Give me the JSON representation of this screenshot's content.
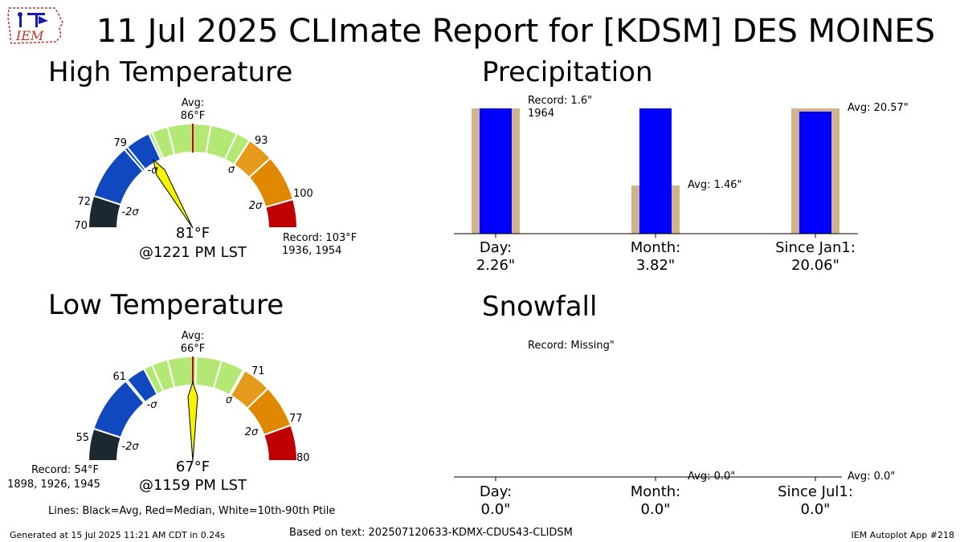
{
  "title": "11 Jul 2025 CLImate Report for [KDSM] DES MOINES",
  "logo_text": "IEM",
  "high": {
    "title": "High Temperature",
    "avg_label": "Avg:",
    "avg_value": "86",
    "unit": "°F",
    "observed": "81",
    "time": "@1221 PM LST",
    "record_label": "Record: 103",
    "record_years": "1936, 1954",
    "value_min": 70,
    "value_max": 103,
    "needle": 81,
    "ticks": [
      {
        "label": "70",
        "value": 70
      },
      {
        "label": "72",
        "value": 72
      },
      {
        "label": "79",
        "value": 79
      },
      {
        "label": "93",
        "value": 93
      },
      {
        "label": "100",
        "value": 100
      }
    ],
    "sigma_labels": {
      "m2": "-2σ",
      "m1": "-σ",
      "p1": "σ",
      "p2": "2σ"
    }
  },
  "low": {
    "title": "Low Temperature",
    "avg_label": "Avg:",
    "avg_value": "66",
    "unit": "°F",
    "observed": "67",
    "time": "@1159 PM LST",
    "record_label": "Record: 54",
    "record_years": "1898, 1926, 1945",
    "value_min": 54,
    "value_max": 80,
    "needle": 67,
    "ticks": [
      {
        "label": "55",
        "value": 55
      },
      {
        "label": "61",
        "value": 61
      },
      {
        "label": "71",
        "value": 71
      },
      {
        "label": "77",
        "value": 77
      },
      {
        "label": "80",
        "value": 80
      }
    ],
    "sigma_labels": {
      "m2": "-2σ",
      "m1": "-σ",
      "p1": "σ",
      "p2": "2σ"
    }
  },
  "precip": {
    "title": "Precipitation",
    "annotations": {
      "record_day": "Record: 1.6\"",
      "record_year": "1964",
      "avg_month": "Avg: 1.46\"",
      "avg_ytd": "Avg: 20.57\""
    },
    "categories": [
      {
        "label": "Day:",
        "value": "2.26\""
      },
      {
        "label": "Month:",
        "value": "3.82\""
      },
      {
        "label": "Since Jan1:",
        "value": "20.06\""
      }
    ]
  },
  "snow": {
    "title": "Snowfall",
    "annotations": {
      "record_day": "Record: Missing\"",
      "avg_month": "Avg: 0.0\"",
      "avg_ytd": "Avg: 0.0\""
    },
    "categories": [
      {
        "label": "Day:",
        "value": "0.0\""
      },
      {
        "label": "Month:",
        "value": "0.0\""
      },
      {
        "label": "Since Jul1:",
        "value": "0.0\""
      }
    ]
  },
  "legend_line": "Lines: Black=Avg, Red=Median, White=10th-90th Ptile",
  "footer": {
    "generated": "Generated at 15 Jul 2025 11:21 AM CDT in 0.24s",
    "based_on": "Based on text: 202507120633-KDMX-CDUS43-CLIDSM",
    "app": "IEM Autoplot App #218"
  },
  "colors": {
    "band_dark": "#1c2830",
    "band_blue": "#1048c0",
    "band_green": "#b2e873",
    "band_orange": "#e69a1c",
    "band_orange2": "#e08800",
    "band_red": "#c00000",
    "needle": "#f5f500",
    "bar_obs": "#0000ff",
    "bar_ref": "#d2b48c"
  },
  "chart_data": [
    {
      "type": "gauge",
      "title": "High Temperature",
      "unit": "°F",
      "observed": 81,
      "average": 86,
      "record": 103,
      "range": [
        70,
        103
      ],
      "ticks": [
        70,
        72,
        79,
        93,
        100
      ]
    },
    {
      "type": "gauge",
      "title": "Low Temperature",
      "unit": "°F",
      "observed": 67,
      "average": 66,
      "record": 54,
      "range": [
        54,
        80
      ],
      "ticks": [
        55,
        61,
        71,
        77,
        80
      ]
    },
    {
      "type": "bar",
      "title": "Precipitation",
      "categories": [
        "Day:",
        "Month:",
        "Since Jan1:"
      ],
      "series": [
        {
          "values": [
            2.26,
            3.82,
            20.06
          ]
        },
        {
          "values": [
            1.6,
            1.46,
            20.57
          ]
        }
      ]
    },
    {
      "type": "bar",
      "title": "Snowfall",
      "categories": [
        "Day:",
        "Month:",
        "Since Jul1:"
      ],
      "series": [
        {
          "values": [
            0.0,
            0.0,
            0.0
          ]
        },
        {
          "values": [
            0.0,
            0.0,
            0.0
          ]
        }
      ]
    }
  ]
}
